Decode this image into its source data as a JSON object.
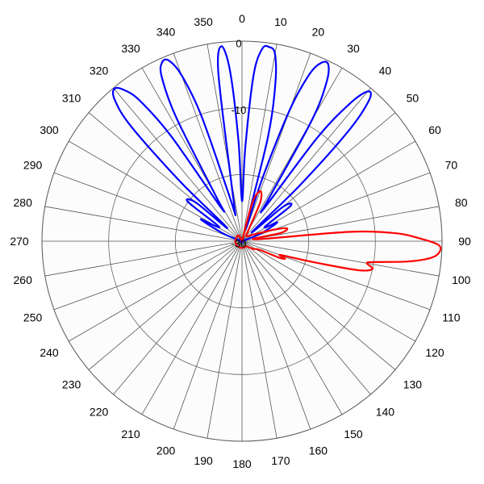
{
  "chart_data": {
    "type": "polar-line",
    "angle_unit": "degrees",
    "angle_zero": "top",
    "angle_direction": "clockwise",
    "angle_ticks": [
      0,
      10,
      20,
      30,
      40,
      50,
      60,
      70,
      80,
      90,
      100,
      110,
      120,
      130,
      140,
      150,
      160,
      170,
      180,
      190,
      200,
      210,
      220,
      230,
      240,
      250,
      260,
      270,
      280,
      290,
      300,
      310,
      320,
      330,
      340,
      350
    ],
    "angle_tick_labels": [
      "0",
      "10",
      "20",
      "30",
      "40",
      "50",
      "60",
      "70",
      "80",
      "90",
      "100",
      "110",
      "120",
      "130",
      "140",
      "150",
      "160",
      "170",
      "180",
      "190",
      "200",
      "210",
      "220",
      "230",
      "240",
      "250",
      "260",
      "270",
      "280",
      "290",
      "300",
      "310",
      "320",
      "330",
      "340",
      "350"
    ],
    "radial_range": [
      -30,
      0
    ],
    "radial_unit": "dB",
    "radial_ticks": [
      0,
      -10,
      -20,
      -30
    ],
    "radial_tick_labels": [
      "0",
      "-10",
      "",
      "-30"
    ],
    "grid": true,
    "series": [
      {
        "color": "#0000ff",
        "values": [
          [
            -14,
            -26
          ],
          [
            -10,
            -20
          ],
          [
            -8,
            -4.5
          ],
          [
            -6,
            -0.6
          ],
          [
            -4,
            -4.5
          ],
          [
            -2,
            -15
          ],
          [
            0,
            -24
          ],
          [
            2,
            -16
          ],
          [
            4,
            -5
          ],
          [
            6,
            -1
          ],
          [
            8,
            -0.6
          ],
          [
            10,
            -1.5
          ],
          [
            12,
            -6
          ],
          [
            14,
            -14
          ],
          [
            16,
            -28
          ],
          [
            18,
            -20
          ],
          [
            20,
            -9
          ],
          [
            22,
            -3
          ],
          [
            24,
            -0.7
          ],
          [
            26,
            -0.5
          ],
          [
            28,
            -3
          ],
          [
            30,
            -9
          ],
          [
            32,
            -22
          ],
          [
            34,
            -24
          ],
          [
            36,
            -11
          ],
          [
            38,
            -4
          ],
          [
            40,
            -0.7
          ],
          [
            42,
            -1.5
          ],
          [
            44,
            -7
          ],
          [
            46,
            -18
          ],
          [
            48,
            -28
          ],
          [
            50,
            -22
          ],
          [
            54,
            -21
          ],
          [
            58,
            -26
          ],
          [
            62,
            -24
          ],
          [
            68,
            -27
          ],
          [
            72,
            -30
          ],
          [
            -72,
            -30
          ],
          [
            -68,
            -27
          ],
          [
            -62,
            -23
          ],
          [
            -58,
            -26
          ],
          [
            -54,
            -20
          ],
          [
            -50,
            -21
          ],
          [
            -48,
            -27
          ],
          [
            -46,
            -17
          ],
          [
            -44,
            -6
          ],
          [
            -42,
            -1.5
          ],
          [
            -40,
            -0.2
          ],
          [
            -38,
            -1.2
          ],
          [
            -36,
            -4
          ],
          [
            -34,
            -11
          ],
          [
            -32,
            -24
          ],
          [
            -30,
            -22
          ],
          [
            -28,
            -9
          ],
          [
            -26,
            -2.5
          ],
          [
            -24,
            -0.6
          ],
          [
            -22,
            -0.8
          ],
          [
            -20,
            -3.5
          ],
          [
            -18,
            -10
          ],
          [
            -16,
            -22
          ],
          [
            -14,
            -26
          ]
        ]
      },
      {
        "color": "#ff0000",
        "values": [
          [
            0,
            -30
          ],
          [
            15,
            -24
          ],
          [
            20,
            -22
          ],
          [
            25,
            -23.5
          ],
          [
            30,
            -28
          ],
          [
            40,
            -29
          ],
          [
            60,
            -28
          ],
          [
            70,
            -25
          ],
          [
            74,
            -23
          ],
          [
            78,
            -24
          ],
          [
            82,
            -28
          ],
          [
            85,
            -14
          ],
          [
            87,
            -7
          ],
          [
            89,
            -3.5
          ],
          [
            91,
            -0.6
          ],
          [
            93,
            -0.3
          ],
          [
            95,
            -1.5
          ],
          [
            97,
            -5
          ],
          [
            99,
            -10
          ],
          [
            100,
            -11
          ],
          [
            102,
            -10
          ],
          [
            104,
            -12
          ],
          [
            106,
            -18
          ],
          [
            108,
            -22
          ],
          [
            110,
            -24
          ],
          [
            112,
            -23
          ],
          [
            114,
            -24
          ],
          [
            116,
            -27
          ],
          [
            125,
            -28
          ],
          [
            140,
            -29
          ],
          [
            160,
            -29
          ],
          [
            180,
            -29
          ],
          [
            200,
            -29
          ],
          [
            225,
            -29
          ],
          [
            250,
            -29
          ],
          [
            270,
            -29
          ],
          [
            300,
            -29
          ],
          [
            330,
            -29
          ],
          [
            360,
            -30
          ]
        ]
      }
    ]
  }
}
